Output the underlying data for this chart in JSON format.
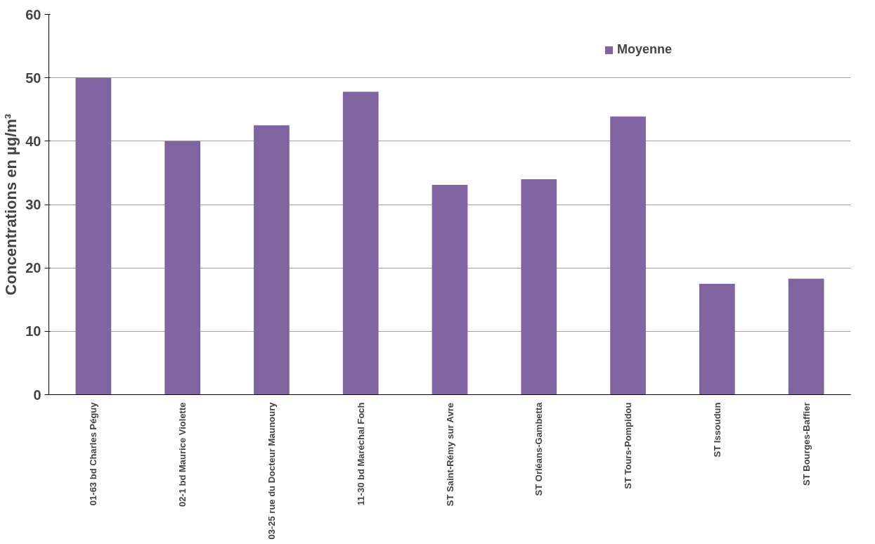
{
  "chart_data": {
    "type": "bar",
    "ylabel": "Concentrations en µg/m³",
    "categories": [
      "01-63 bd Charles Péguy",
      "02-1 bd Maurice Violette",
      "03-25 rue du Docteur Maunoury",
      "11-30 bd Maréchal Foch",
      "ST Saint-Rémy sur Avre",
      "ST Orléans-Gambetta",
      "ST Tours-Pompidou",
      "ST Issoudun",
      "ST Bourges-Baffier"
    ],
    "series": [
      {
        "name": "Moyenne",
        "color": "#8064a2",
        "values": [
          50.0,
          40.0,
          42.5,
          47.8,
          33.1,
          34.0,
          43.9,
          17.5,
          18.3
        ]
      }
    ],
    "ylim": [
      0,
      60
    ],
    "yticks": [
      0,
      10,
      20,
      30,
      40,
      50,
      60
    ],
    "grid": "y",
    "legend": "top right"
  }
}
